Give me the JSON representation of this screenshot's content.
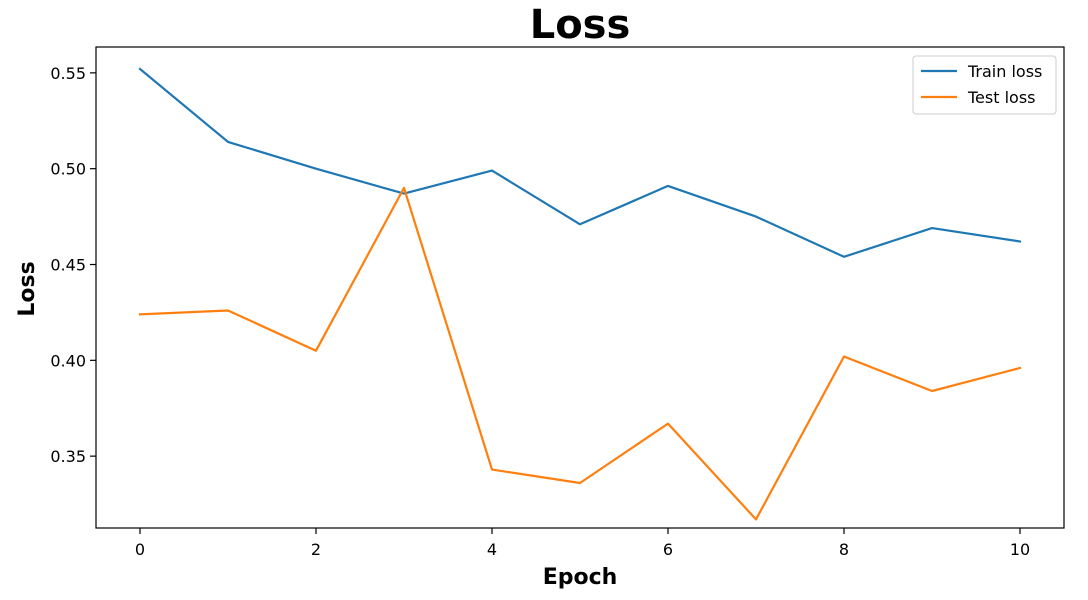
{
  "chart_data": {
    "type": "line",
    "title": "Loss",
    "xlabel": "Epoch",
    "ylabel": "Loss",
    "x": [
      0,
      1,
      2,
      3,
      4,
      5,
      6,
      7,
      8,
      9,
      10
    ],
    "xlim": [
      -0.5,
      10.5
    ],
    "ylim": [
      0.3125,
      0.5635
    ],
    "xticks": [
      0,
      2,
      4,
      6,
      8,
      10
    ],
    "xtick_labels": [
      "0",
      "2",
      "4",
      "6",
      "8",
      "10"
    ],
    "yticks": [
      0.35,
      0.4,
      0.45,
      0.5,
      0.55
    ],
    "ytick_labels": [
      "0.35",
      "0.40",
      "0.45",
      "0.50",
      "0.55"
    ],
    "grid": false,
    "legend_position": "top-right",
    "series": [
      {
        "name": "Train loss",
        "color": "#1f77b4",
        "values": [
          0.552,
          0.514,
          0.5,
          0.487,
          0.499,
          0.471,
          0.491,
          0.475,
          0.454,
          0.469,
          0.462
        ]
      },
      {
        "name": "Test loss",
        "color": "#ff7f0e",
        "values": [
          0.424,
          0.426,
          0.405,
          0.49,
          0.343,
          0.336,
          0.367,
          0.317,
          0.402,
          0.384,
          0.396
        ]
      }
    ]
  }
}
